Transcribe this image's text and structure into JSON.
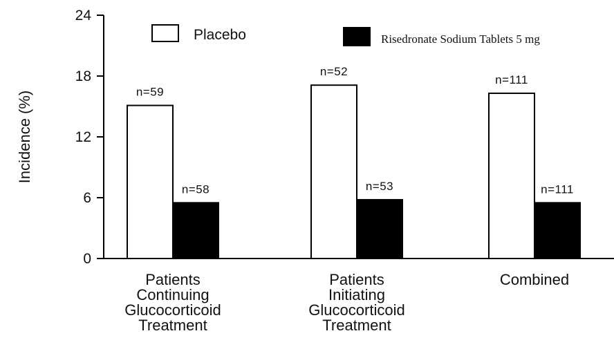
{
  "chart_data": {
    "type": "bar",
    "ylabel": "Incidence (%)",
    "ylim": [
      0,
      24
    ],
    "yticks": [
      "0",
      "6",
      "12",
      "18",
      "24"
    ],
    "categories": [
      [
        "Patients",
        "Continuing",
        "Glucocorticoid",
        "Treatment"
      ],
      [
        "Patients",
        "Initiating",
        "Glucocorticoid",
        "Treatment"
      ],
      [
        "Combined"
      ]
    ],
    "series": [
      {
        "name": "Placebo",
        "color": "#ffffff",
        "values": [
          15.1,
          17.1,
          16.3
        ],
        "n_labels": [
          "n=59",
          "n=52",
          "n=111"
        ]
      },
      {
        "name": "Risedronate Sodium Tablets 5 mg",
        "color": "#000000",
        "values": [
          5.5,
          5.8,
          5.5
        ],
        "n_labels": [
          "n=58",
          "n=53",
          "n=111"
        ]
      }
    ],
    "legend_position": "top",
    "grid": false
  }
}
